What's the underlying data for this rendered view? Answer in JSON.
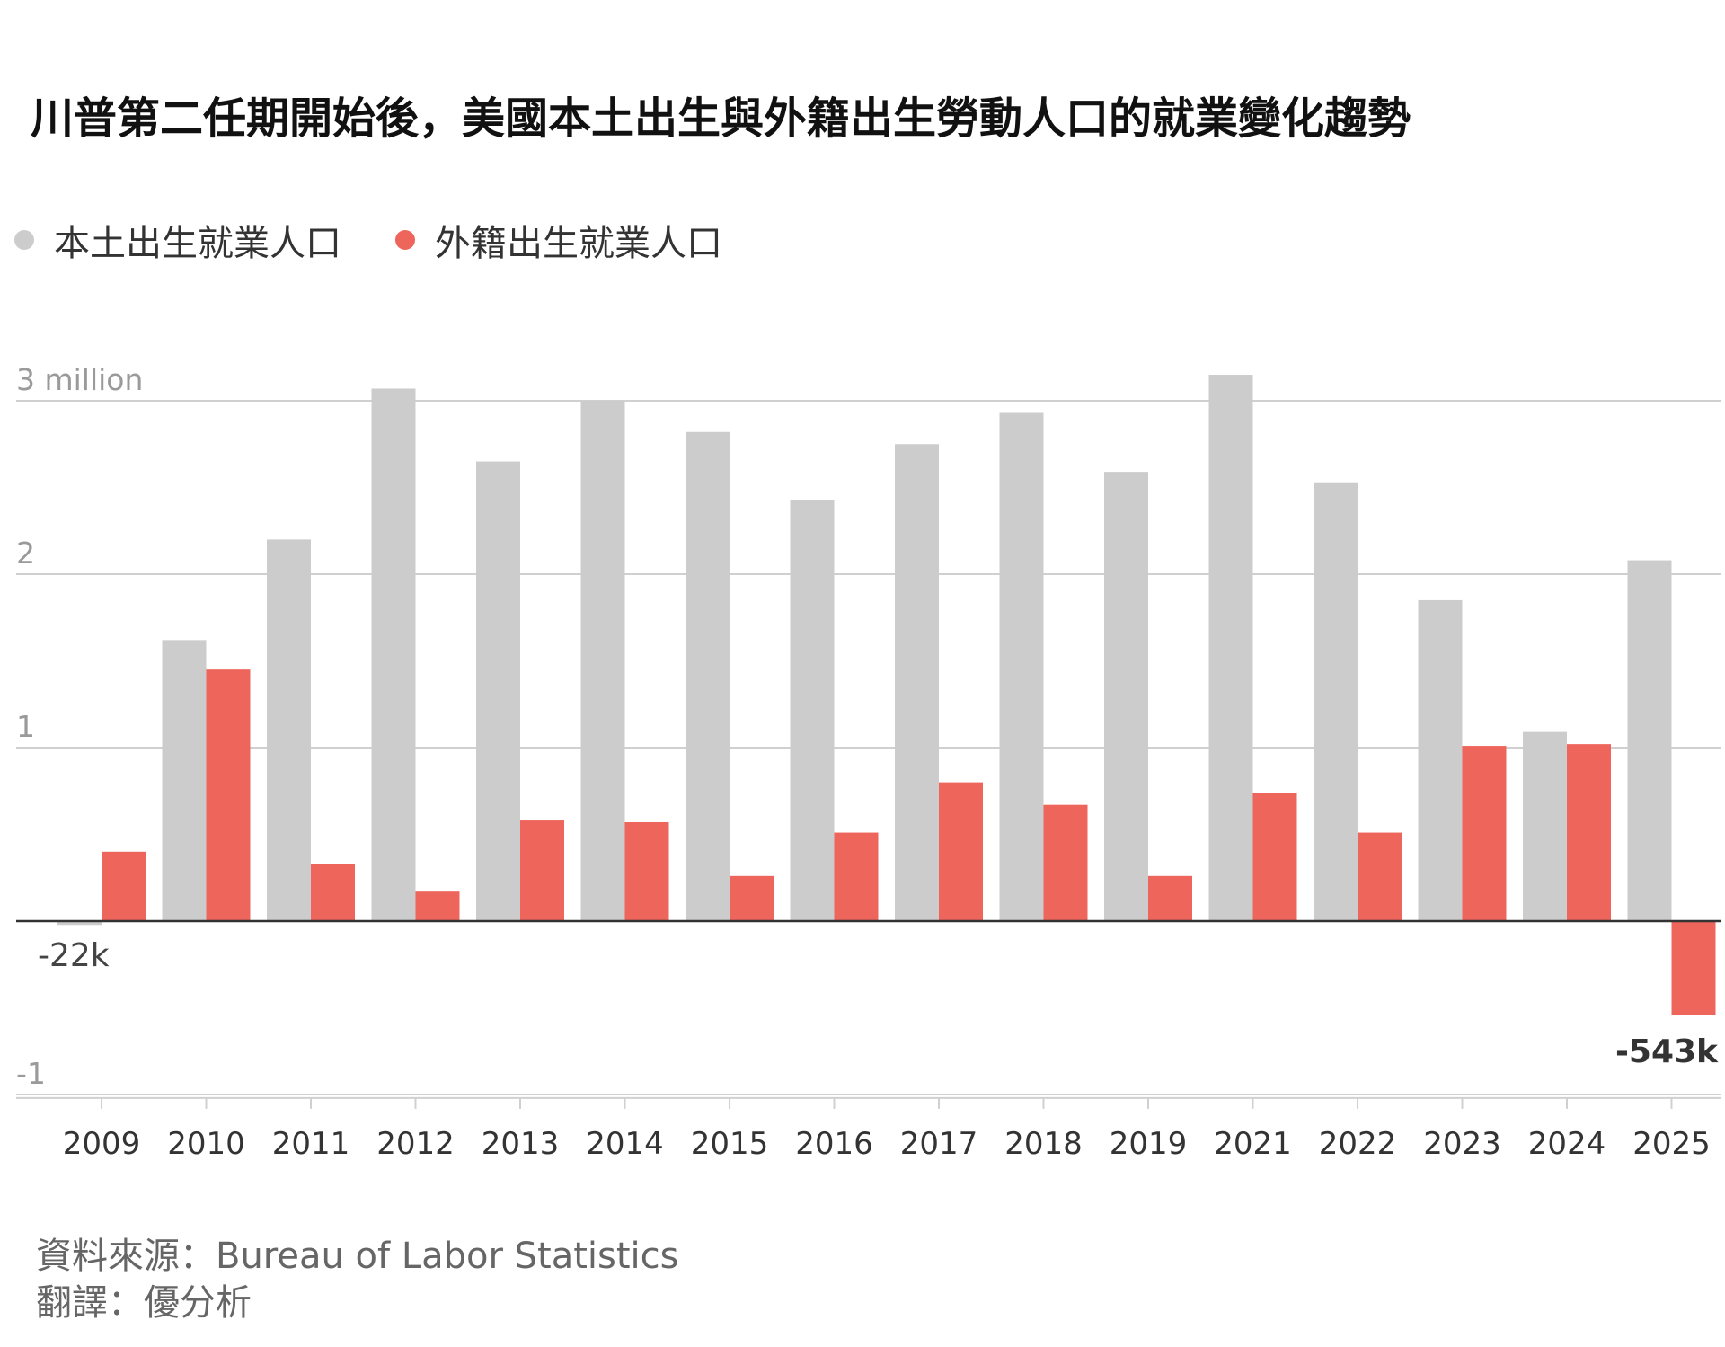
{
  "title": "川普第二任期開始後，美國本土出生與外籍出生勞動人口的就業變化趨勢",
  "legend": {
    "native": "本土出生就業人口",
    "foreign": "外籍出生就業人口"
  },
  "colors": {
    "native": "#cccccc",
    "foreign": "#ee655c",
    "grid": "#d0d0d0",
    "baseline": "#333333",
    "tick_text": "#9a9a9a",
    "axis_text": "#333333"
  },
  "chart_data": {
    "type": "bar",
    "categories": [
      "2009",
      "2010",
      "2011",
      "2012",
      "2013",
      "2014",
      "2015",
      "2016",
      "2017",
      "2018",
      "2019",
      "2021",
      "2022",
      "2023",
      "2024",
      "2025"
    ],
    "series": [
      {
        "name": "本土出生就業人口",
        "values": [
          -0.022,
          1.62,
          2.2,
          3.07,
          2.65,
          3.0,
          2.82,
          2.43,
          2.75,
          2.93,
          2.59,
          3.15,
          2.53,
          1.85,
          1.09,
          2.08
        ]
      },
      {
        "name": "外籍出生就業人口",
        "values": [
          0.4,
          1.45,
          0.33,
          0.17,
          0.58,
          0.57,
          0.26,
          0.51,
          0.8,
          0.67,
          0.26,
          0.74,
          0.51,
          1.01,
          1.02,
          -0.543
        ]
      }
    ],
    "yticks": [
      {
        "value": 3,
        "label": "3 million"
      },
      {
        "value": 2,
        "label": "2"
      },
      {
        "value": 1,
        "label": "1"
      },
      {
        "value": -1,
        "label": "-1"
      }
    ],
    "ylim": [
      -1.02,
      3.25
    ],
    "annotations": [
      {
        "label": "-22k",
        "category": "2009",
        "series": 0
      },
      {
        "label": "-543k",
        "category": "2025",
        "series": 1
      }
    ],
    "grid": true
  },
  "footer": {
    "source": "資料來源：Bureau of Labor Statistics",
    "translation": "翻譯：優分析"
  }
}
